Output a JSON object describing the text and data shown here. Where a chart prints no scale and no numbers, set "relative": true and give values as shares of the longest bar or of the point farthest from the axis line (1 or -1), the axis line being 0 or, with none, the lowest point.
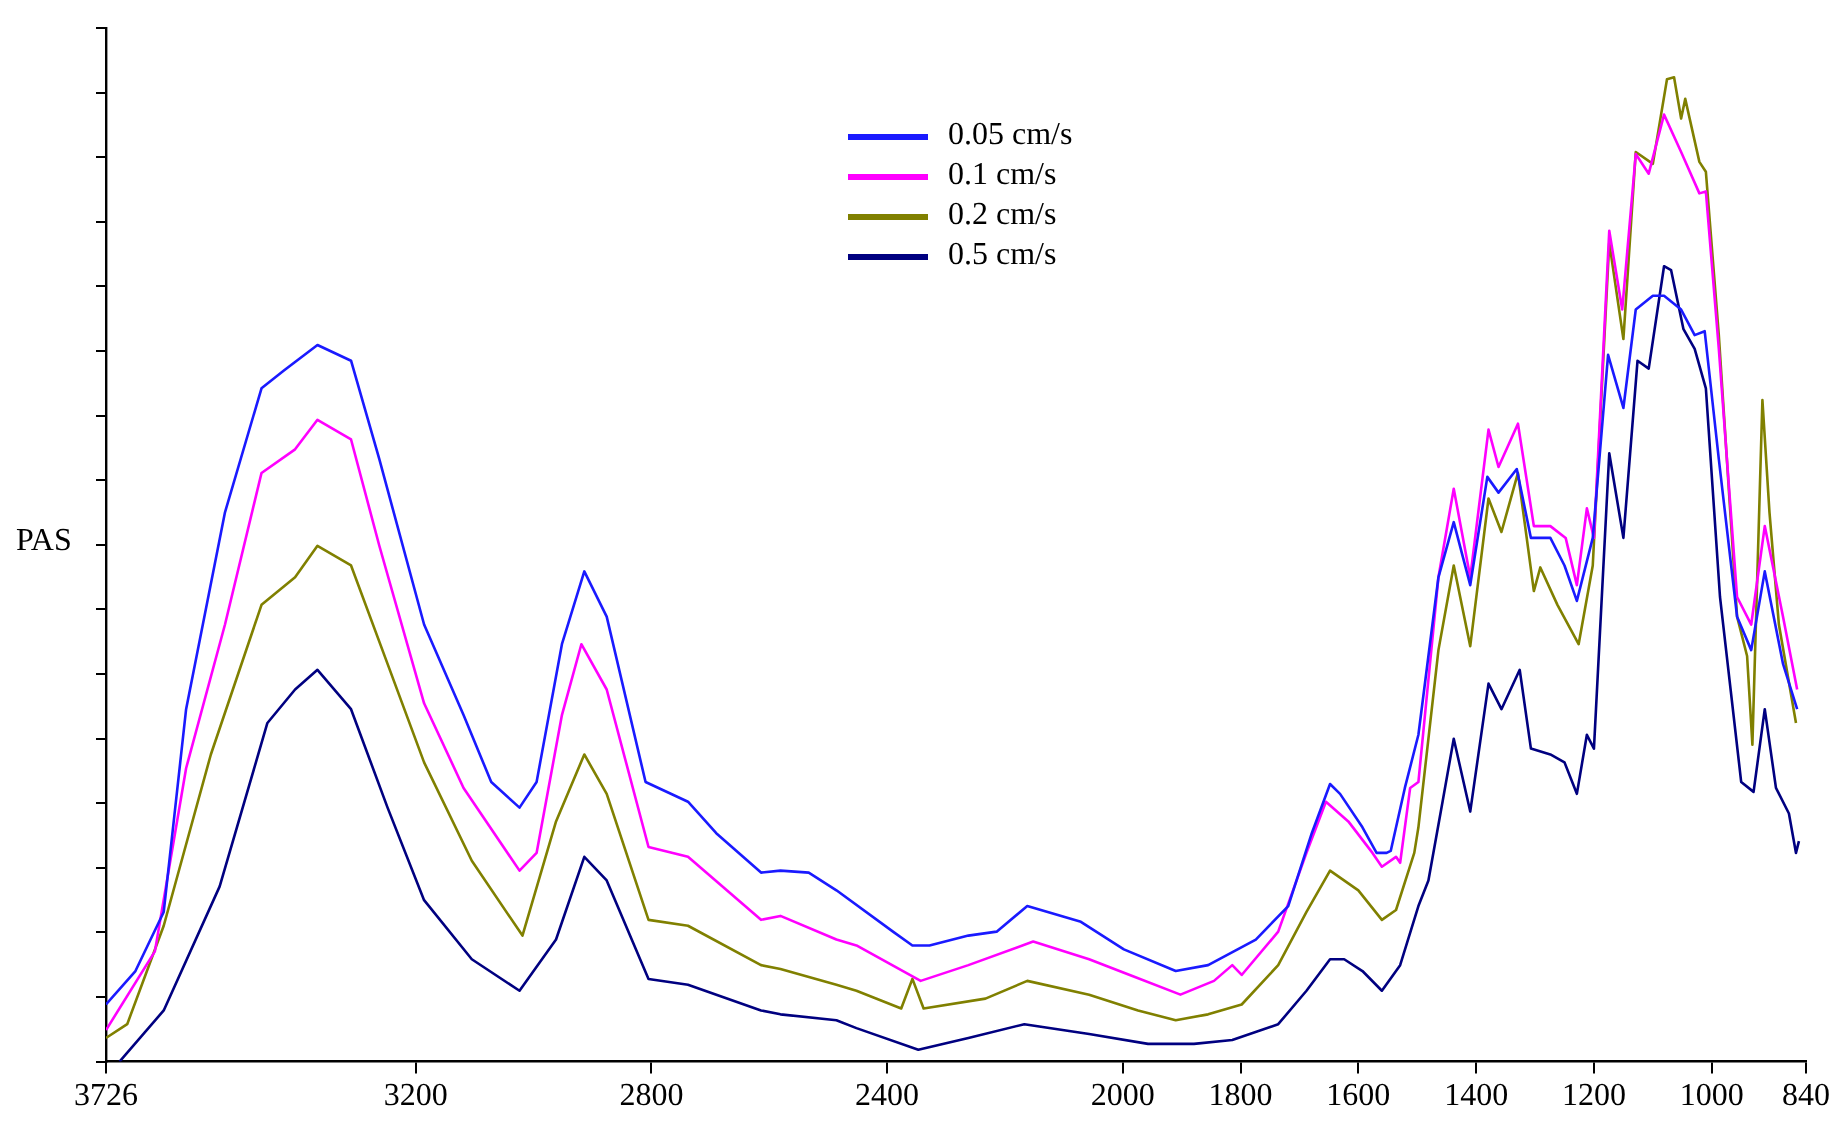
{
  "chart_data": {
    "type": "line",
    "ylabel": "PAS",
    "relative": true,
    "legend": "top",
    "grid": false,
    "marker": "none",
    "line_style": "solid",
    "xlim": [
      3726,
      840
    ],
    "xticks": [
      3726,
      3200,
      2800,
      2400,
      2000,
      1800,
      1600,
      1400,
      1200,
      1000,
      840
    ],
    "series": [
      {
        "name": "0.05 cm/s",
        "color": "#1a1aff",
        "x": [
          3726,
          3676,
          3628,
          3590,
          3524,
          3462,
          3424,
          3367,
          3310,
          3262,
          3186,
          3119,
          3072,
          3024,
          2995,
          2952,
          2914,
          2876,
          2810,
          2738,
          2690,
          2614,
          2581,
          2533,
          2486,
          2390,
          2357,
          2328,
          2262,
          2214,
          2162,
          2071,
          1998,
          1910,
          1855,
          1774,
          1719,
          1679,
          1648,
          1631,
          1593,
          1569,
          1552,
          1545,
          1521,
          1498,
          1464,
          1438,
          1410,
          1381,
          1362,
          1331,
          1307,
          1274,
          1250,
          1229,
          1202,
          1176,
          1150,
          1129,
          1100,
          1081,
          1052,
          1029,
          1012,
          988,
          957,
          933,
          910,
          879,
          855
        ],
        "values": [
          0.058,
          0.092,
          0.152,
          0.358,
          0.558,
          0.684,
          0.702,
          0.728,
          0.712,
          0.612,
          0.444,
          0.352,
          0.284,
          0.258,
          0.284,
          0.424,
          0.498,
          0.452,
          0.284,
          0.264,
          0.232,
          0.192,
          0.194,
          0.192,
          0.174,
          0.132,
          0.118,
          0.118,
          0.128,
          0.132,
          0.158,
          0.142,
          0.114,
          0.092,
          0.098,
          0.124,
          0.158,
          0.232,
          0.282,
          0.272,
          0.238,
          0.212,
          0.212,
          0.214,
          0.278,
          0.332,
          0.492,
          0.548,
          0.484,
          0.594,
          0.578,
          0.602,
          0.532,
          0.532,
          0.504,
          0.468,
          0.532,
          0.718,
          0.664,
          0.764,
          0.778,
          0.778,
          0.764,
          0.738,
          0.742,
          0.612,
          0.452,
          0.418,
          0.498,
          0.404,
          0.358
        ]
      },
      {
        "name": "0.1 cm/s",
        "color": "#ff00ff",
        "x": [
          3726,
          3643,
          3590,
          3524,
          3462,
          3405,
          3367,
          3310,
          3262,
          3186,
          3119,
          3024,
          2995,
          2952,
          2919,
          2876,
          2805,
          2738,
          2614,
          2581,
          2486,
          2452,
          2343,
          2262,
          2152,
          2057,
          1988,
          1902,
          1845,
          1814,
          1798,
          1736,
          1688,
          1655,
          1617,
          1576,
          1560,
          1536,
          1529,
          1512,
          1498,
          1464,
          1438,
          1410,
          1379,
          1362,
          1329,
          1302,
          1274,
          1248,
          1229,
          1212,
          1200,
          1174,
          1152,
          1129,
          1107,
          1081,
          1052,
          1021,
          1010,
          988,
          957,
          933,
          910,
          879,
          855
        ],
        "values": [
          0.032,
          0.112,
          0.298,
          0.444,
          0.598,
          0.622,
          0.652,
          0.632,
          0.524,
          0.364,
          0.278,
          0.194,
          0.212,
          0.352,
          0.424,
          0.378,
          0.218,
          0.208,
          0.144,
          0.148,
          0.124,
          0.118,
          0.082,
          0.098,
          0.122,
          0.104,
          0.088,
          0.068,
          0.082,
          0.098,
          0.088,
          0.132,
          0.212,
          0.264,
          0.244,
          0.212,
          0.198,
          0.208,
          0.202,
          0.278,
          0.284,
          0.492,
          0.582,
          0.492,
          0.642,
          0.604,
          0.648,
          0.544,
          0.544,
          0.532,
          0.484,
          0.562,
          0.532,
          0.844,
          0.764,
          0.922,
          0.902,
          0.962,
          0.924,
          0.882,
          0.884,
          0.724,
          0.472,
          0.444,
          0.544,
          0.452,
          0.378
        ]
      },
      {
        "name": "0.2 cm/s",
        "color": "#808000",
        "x": [
          3726,
          3690,
          3628,
          3548,
          3462,
          3405,
          3367,
          3310,
          3248,
          3186,
          3105,
          3019,
          2962,
          2914,
          2876,
          2805,
          2738,
          2614,
          2581,
          2486,
          2452,
          2376,
          2357,
          2338,
          2233,
          2162,
          2057,
          1974,
          1910,
          1855,
          1798,
          1736,
          1688,
          1648,
          1600,
          1560,
          1536,
          1505,
          1498,
          1464,
          1438,
          1410,
          1379,
          1357,
          1329,
          1302,
          1291,
          1262,
          1226,
          1202,
          1174,
          1150,
          1129,
          1100,
          1076,
          1064,
          1052,
          1045,
          1021,
          1010,
          988,
          957,
          940,
          931,
          914,
          902,
          886,
          857
        ],
        "values": [
          0.024,
          0.038,
          0.138,
          0.312,
          0.464,
          0.492,
          0.524,
          0.504,
          0.404,
          0.304,
          0.204,
          0.128,
          0.244,
          0.312,
          0.272,
          0.144,
          0.138,
          0.098,
          0.094,
          0.078,
          0.072,
          0.054,
          0.084,
          0.054,
          0.064,
          0.082,
          0.068,
          0.052,
          0.042,
          0.048,
          0.058,
          0.098,
          0.152,
          0.194,
          0.174,
          0.144,
          0.154,
          0.212,
          0.238,
          0.418,
          0.504,
          0.422,
          0.572,
          0.538,
          0.598,
          0.478,
          0.502,
          0.464,
          0.424,
          0.504,
          0.832,
          0.734,
          0.924,
          0.912,
          0.998,
          1,
          0.958,
          0.978,
          0.914,
          0.904,
          0.738,
          0.452,
          0.412,
          0.322,
          0.672,
          0.558,
          0.444,
          0.344
        ]
      },
      {
        "name": "0.5 cm/s",
        "color": "#000080",
        "x": [
          3703,
          3628,
          3533,
          3452,
          3405,
          3367,
          3310,
          3248,
          3186,
          3105,
          3024,
          2962,
          2914,
          2876,
          2805,
          2738,
          2614,
          2581,
          2486,
          2452,
          2347,
          2262,
          2167,
          2057,
          1957,
          1879,
          1814,
          1736,
          1688,
          1648,
          1624,
          1593,
          1560,
          1529,
          1498,
          1481,
          1457,
          1438,
          1410,
          1379,
          1357,
          1326,
          1307,
          1274,
          1250,
          1229,
          1212,
          1200,
          1174,
          1150,
          1126,
          1107,
          1081,
          1069,
          1048,
          1029,
          1010,
          986,
          950,
          929,
          910,
          891,
          869,
          857,
          852
        ],
        "values": [
          0,
          0.052,
          0.178,
          0.344,
          0.378,
          0.398,
          0.358,
          0.258,
          0.164,
          0.104,
          0.072,
          0.124,
          0.208,
          0.184,
          0.084,
          0.078,
          0.052,
          0.048,
          0.042,
          0.034,
          0.012,
          0.024,
          0.038,
          0.028,
          0.018,
          0.018,
          0.022,
          0.038,
          0.072,
          0.104,
          0.104,
          0.092,
          0.072,
          0.098,
          0.158,
          0.184,
          0.264,
          0.328,
          0.254,
          0.384,
          0.358,
          0.398,
          0.318,
          0.312,
          0.304,
          0.272,
          0.332,
          0.318,
          0.618,
          0.532,
          0.712,
          0.704,
          0.808,
          0.804,
          0.744,
          0.724,
          0.684,
          0.472,
          0.284,
          0.274,
          0.358,
          0.278,
          0.252,
          0.212,
          0.224
        ]
      }
    ]
  }
}
